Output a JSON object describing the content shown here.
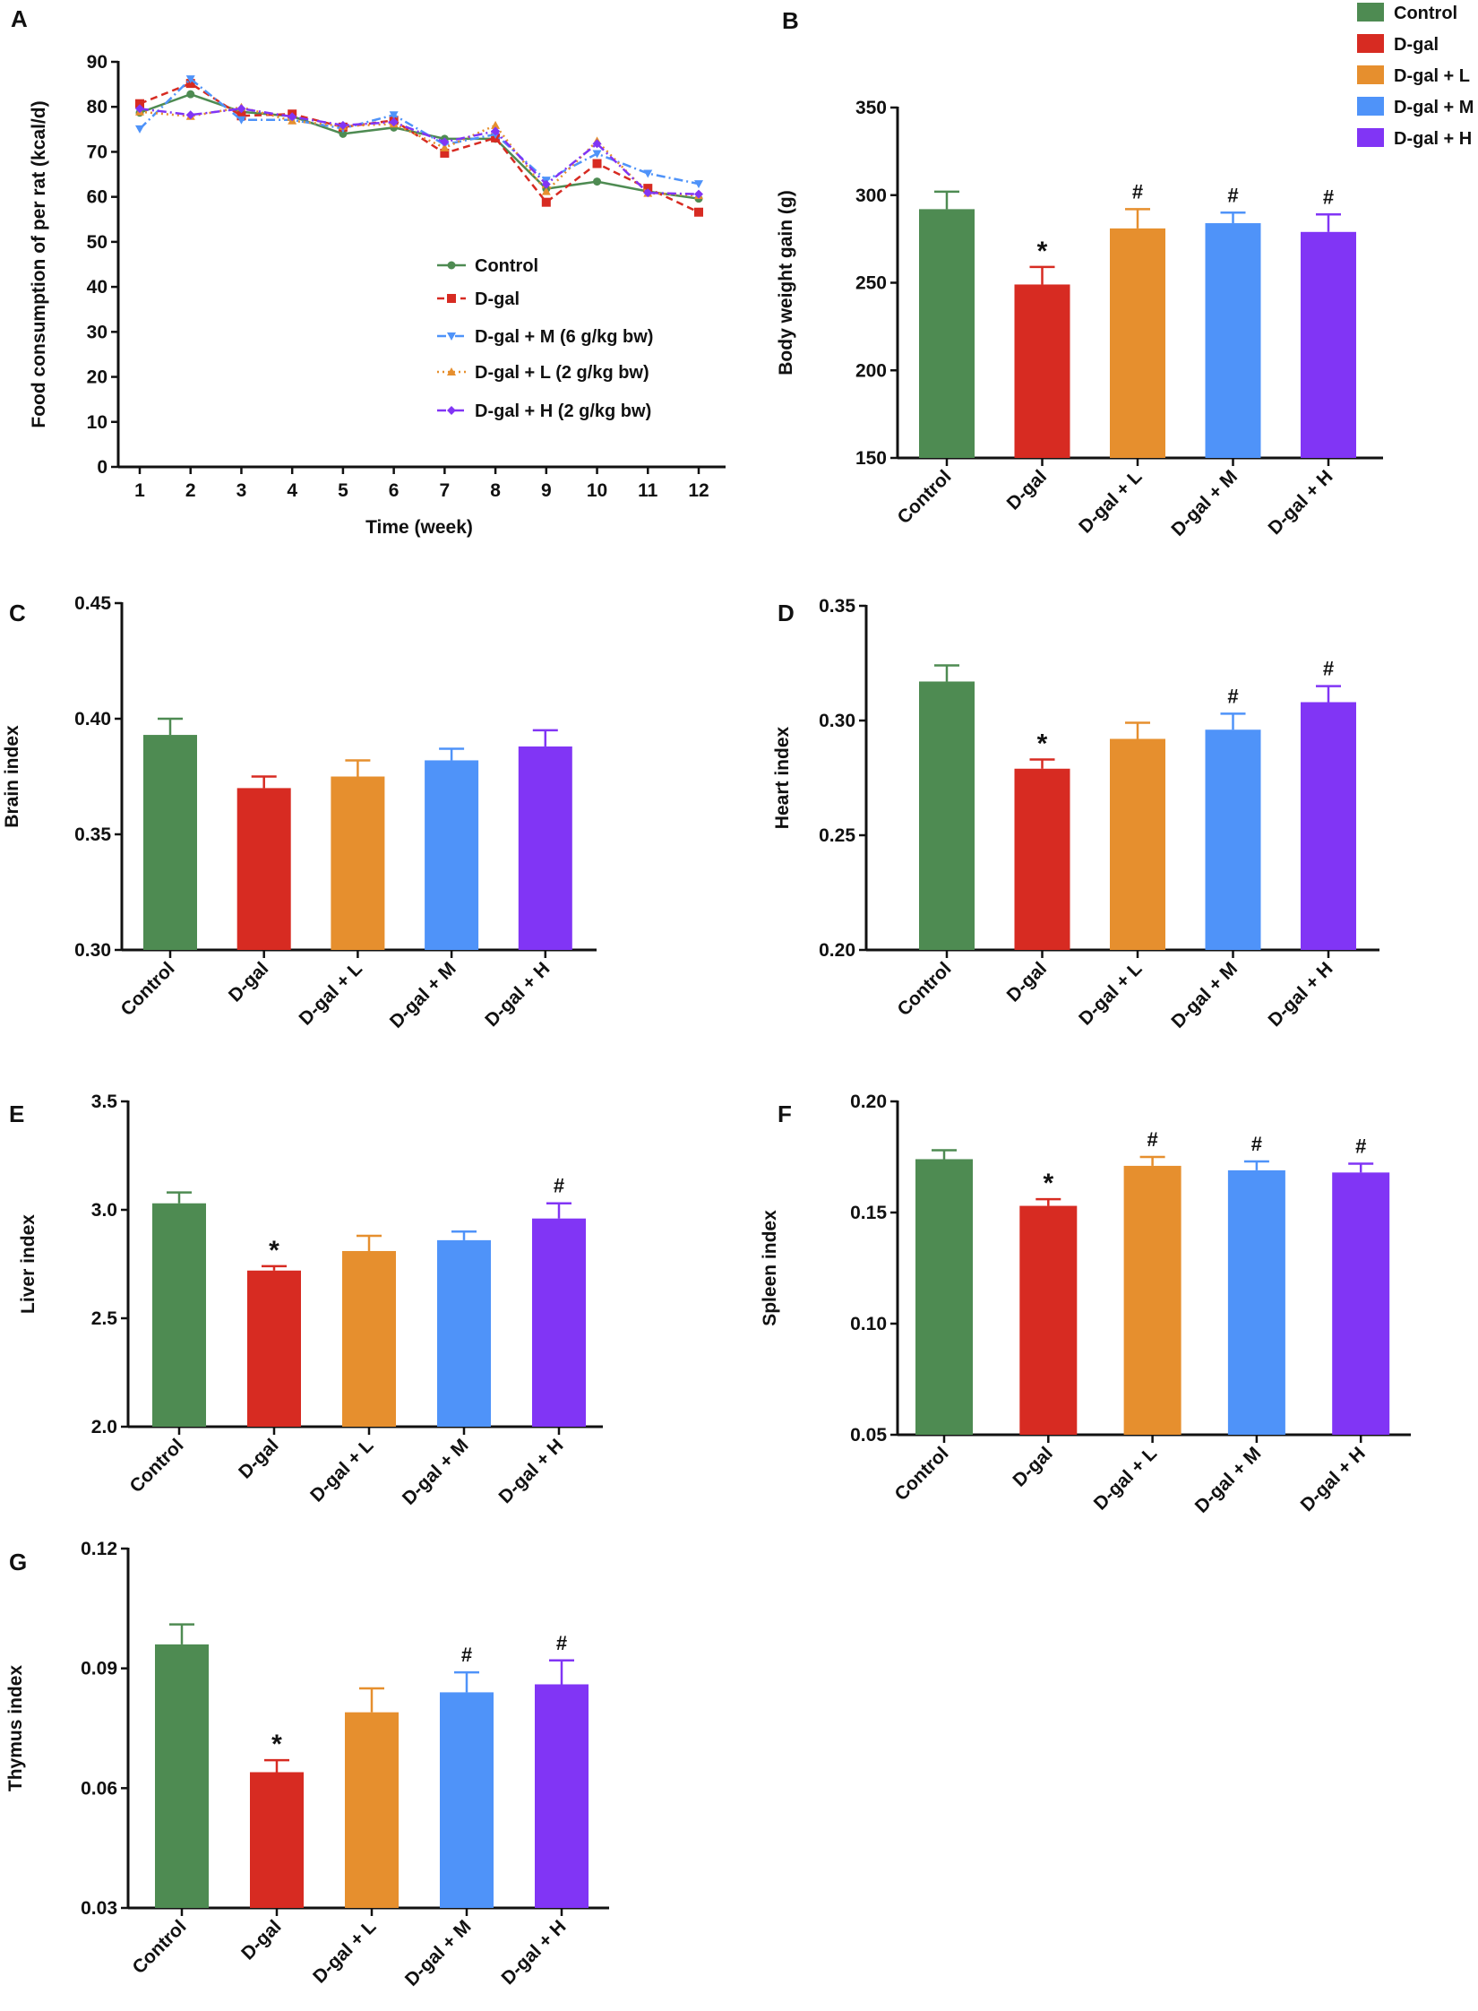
{
  "colors": {
    "Control": "#4e8b52",
    "D-gal": "#d72b22",
    "D-gal + L": "#e68f2e",
    "D-gal + M": "#4f93f9",
    "D-gal + H": "#8135f5",
    "axis": "#111111"
  },
  "groups": [
    "Control",
    "D-gal",
    "D-gal + L",
    "D-gal + M",
    "D-gal + H"
  ],
  "legend_b": [
    "Control",
    "D-gal",
    "D-gal + L",
    "D-gal + M",
    "D-gal + H"
  ],
  "chart_data": [
    {
      "panel": "A",
      "type": "line",
      "ylabel": "Food consumption of per rat (kcal/d)",
      "xlabel": "Time (week)",
      "ylim": [
        0,
        90
      ],
      "yticks": [
        "0",
        "10",
        "20",
        "30",
        "40",
        "50",
        "60",
        "70",
        "80",
        "90"
      ],
      "x": [
        "1",
        "2",
        "3",
        "4",
        "5",
        "6",
        "7",
        "8",
        "9",
        "10",
        "11",
        "12"
      ],
      "legend_position": "center-right",
      "series": [
        {
          "name": "Control",
          "color_key": "Control",
          "style": "solid",
          "marker": "circle",
          "values": [
            78.7,
            82.8,
            78.9,
            77.9,
            74.0,
            75.4,
            72.9,
            72.9,
            61.8,
            63.4,
            61.2,
            59.6
          ]
        },
        {
          "name": "D-gal",
          "color_key": "D-gal",
          "style": "dashed",
          "marker": "square",
          "values": [
            80.7,
            85.2,
            78.0,
            78.4,
            75.5,
            77.0,
            69.7,
            73.1,
            58.8,
            67.4,
            61.9,
            56.6
          ]
        },
        {
          "name": "D-gal + M (6 g/kg bw)",
          "color_key": "D-gal + M",
          "style": "dashdot",
          "marker": "triangle-down",
          "values": [
            75.1,
            86.2,
            77.1,
            77.1,
            75.2,
            78.2,
            71.6,
            73.9,
            63.7,
            69.6,
            65.2,
            62.9
          ]
        },
        {
          "name": "D-gal + L (2 g/kg bw)",
          "color_key": "D-gal + L",
          "style": "dotted",
          "marker": "triangle-up",
          "values": [
            78.9,
            77.9,
            79.9,
            76.9,
            75.7,
            76.2,
            70.9,
            75.9,
            61.2,
            72.4,
            60.8,
            60.3
          ]
        },
        {
          "name": "D-gal + H (2 g/kg bw)",
          "color_key": "D-gal + H",
          "style": "dashdot",
          "marker": "diamond",
          "values": [
            79.6,
            78.2,
            79.6,
            77.8,
            75.9,
            76.6,
            72.2,
            74.6,
            62.8,
            71.8,
            60.9,
            60.6
          ]
        }
      ]
    },
    {
      "panel": "B",
      "type": "bar",
      "ylabel": "Body weight gain (g)",
      "ylim": [
        150,
        350
      ],
      "yticks": [
        "150",
        "200",
        "250",
        "300",
        "350"
      ],
      "values": [
        292,
        249,
        281,
        284,
        279
      ],
      "errors": [
        10,
        10,
        11,
        6,
        10
      ],
      "annotations": [
        "",
        "*",
        "#",
        "#",
        "#"
      ]
    },
    {
      "panel": "C",
      "type": "bar",
      "ylabel": "Brain index",
      "ylim": [
        0.3,
        0.45
      ],
      "yticks": [
        "0.30",
        "0.35",
        "0.40",
        "0.45"
      ],
      "values": [
        0.393,
        0.37,
        0.375,
        0.382,
        0.388
      ],
      "errors": [
        0.007,
        0.005,
        0.007,
        0.005,
        0.007
      ],
      "annotations": [
        "",
        "",
        "",
        "",
        ""
      ]
    },
    {
      "panel": "D",
      "type": "bar",
      "ylabel": "Heart index",
      "ylim": [
        0.2,
        0.35
      ],
      "yticks": [
        "0.20",
        "0.25",
        "0.30",
        "0.35"
      ],
      "values": [
        0.317,
        0.279,
        0.292,
        0.296,
        0.308
      ],
      "errors": [
        0.007,
        0.004,
        0.007,
        0.007,
        0.007
      ],
      "annotations": [
        "",
        "*",
        "",
        "#",
        "#"
      ]
    },
    {
      "panel": "E",
      "type": "bar",
      "ylabel": "Liver index",
      "ylim": [
        2.0,
        3.5
      ],
      "yticks": [
        "2.0",
        "2.5",
        "3.0",
        "3.5"
      ],
      "values": [
        3.03,
        2.72,
        2.81,
        2.86,
        2.96
      ],
      "errors": [
        0.05,
        0.02,
        0.07,
        0.04,
        0.07
      ],
      "annotations": [
        "",
        "*",
        "",
        "",
        "#"
      ]
    },
    {
      "panel": "F",
      "type": "bar",
      "ylabel": "Spleen index",
      "ylim": [
        0.05,
        0.2
      ],
      "yticks": [
        "0.05",
        "0.10",
        "0.15",
        "0.20"
      ],
      "values": [
        0.174,
        0.153,
        0.171,
        0.169,
        0.168
      ],
      "errors": [
        0.004,
        0.003,
        0.004,
        0.004,
        0.004
      ],
      "annotations": [
        "",
        "*",
        "#",
        "#",
        "#"
      ]
    },
    {
      "panel": "G",
      "type": "bar",
      "ylabel": "Thymus index",
      "ylim": [
        0.03,
        0.12
      ],
      "yticks": [
        "0.03",
        "0.06",
        "0.09",
        "0.12"
      ],
      "values": [
        0.096,
        0.064,
        0.079,
        0.084,
        0.086
      ],
      "errors": [
        0.005,
        0.003,
        0.006,
        0.005,
        0.006
      ],
      "annotations": [
        "",
        "*",
        "",
        "#",
        "#"
      ]
    }
  ]
}
